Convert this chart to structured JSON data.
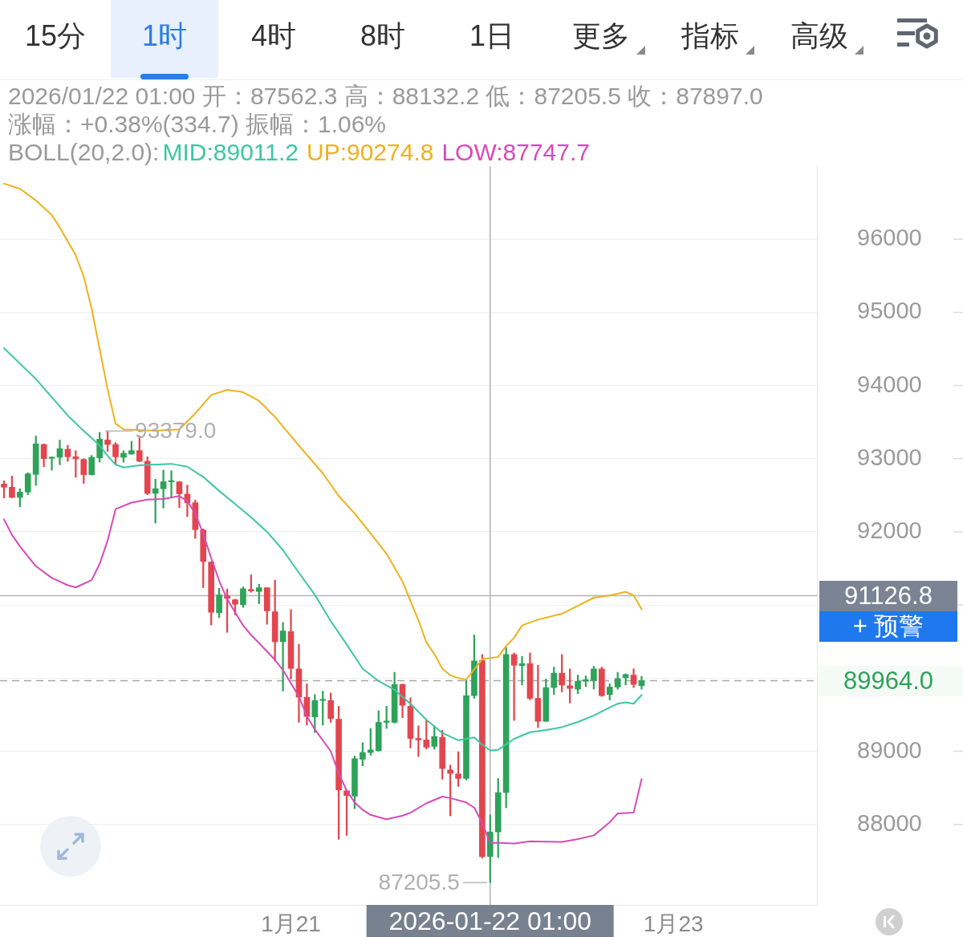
{
  "chart_data": {
    "type": "candlestick",
    "title": "2026/01/22 01:00 开：87562.3 高：88132.2 低：87205.5 收：87897.0",
    "subtitle": "涨幅：+0.38%(334.7) 振幅：1.06%",
    "legend_title": "BOLL(20,2.0):",
    "legend": "top left",
    "marker": "none",
    "grid": "y",
    "x": [
      "2026-01-19T12:00",
      "2026-01-19T13:00",
      "2026-01-19T14:00",
      "2026-01-19T15:00",
      "2026-01-19T16:00",
      "2026-01-19T17:00",
      "2026-01-19T18:00",
      "2026-01-19T19:00",
      "2026-01-19T20:00",
      "2026-01-19T21:00",
      "2026-01-19T22:00",
      "2026-01-19T23:00",
      "2026-01-20T00:00",
      "2026-01-20T01:00",
      "2026-01-20T02:00",
      "2026-01-20T03:00",
      "2026-01-20T04:00",
      "2026-01-20T05:00",
      "2026-01-20T06:00",
      "2026-01-20T07:00",
      "2026-01-20T08:00",
      "2026-01-20T09:00",
      "2026-01-20T10:00",
      "2026-01-20T11:00",
      "2026-01-20T12:00",
      "2026-01-20T13:00",
      "2026-01-20T14:00",
      "2026-01-20T15:00",
      "2026-01-20T16:00",
      "2026-01-20T17:00",
      "2026-01-20T18:00",
      "2026-01-20T19:00",
      "2026-01-20T20:00",
      "2026-01-20T21:00",
      "2026-01-20T22:00",
      "2026-01-20T23:00",
      "2026-01-21T00:00",
      "2026-01-21T01:00",
      "2026-01-21T02:00",
      "2026-01-21T03:00",
      "2026-01-21T04:00",
      "2026-01-21T05:00",
      "2026-01-21T06:00",
      "2026-01-21T07:00",
      "2026-01-21T08:00",
      "2026-01-21T09:00",
      "2026-01-21T10:00",
      "2026-01-21T11:00",
      "2026-01-21T12:00",
      "2026-01-21T13:00",
      "2026-01-21T14:00",
      "2026-01-21T15:00",
      "2026-01-21T16:00",
      "2026-01-21T17:00",
      "2026-01-21T18:00",
      "2026-01-21T19:00",
      "2026-01-21T20:00",
      "2026-01-21T21:00",
      "2026-01-21T22:00",
      "2026-01-21T23:00",
      "2026-01-22T00:00",
      "2026-01-22T01:00",
      "2026-01-22T02:00",
      "2026-01-22T03:00",
      "2026-01-22T04:00",
      "2026-01-22T05:00",
      "2026-01-22T06:00",
      "2026-01-22T07:00",
      "2026-01-22T08:00",
      "2026-01-22T09:00",
      "2026-01-22T10:00",
      "2026-01-22T11:00",
      "2026-01-22T12:00",
      "2026-01-22T13:00",
      "2026-01-22T14:00",
      "2026-01-22T15:00",
      "2026-01-22T16:00",
      "2026-01-22T17:00",
      "2026-01-22T18:00",
      "2026-01-22T19:00",
      "2026-01-22T20:00"
    ],
    "ohlc": [
      [
        92654,
        92698,
        92464,
        92610
      ],
      [
        92610,
        92763,
        92464,
        92471
      ],
      [
        92471,
        92588,
        92343,
        92544
      ],
      [
        92544,
        92807,
        92508,
        92793
      ],
      [
        92785,
        93311,
        92635,
        93202
      ],
      [
        93194,
        93202,
        92891,
        93001
      ],
      [
        93005,
        93026,
        92844,
        93020
      ],
      [
        93019,
        93256,
        92917,
        93136
      ],
      [
        93129,
        93183,
        92964,
        93026
      ],
      [
        93026,
        93110,
        92745,
        92997
      ],
      [
        92990,
        93001,
        92661,
        92782
      ],
      [
        92782,
        93045,
        92775,
        93019
      ],
      [
        93012,
        93360,
        92953,
        93267
      ],
      [
        93256,
        93379.0,
        93099,
        93194
      ],
      [
        93194,
        93220,
        92917,
        93026
      ],
      [
        93019,
        93110,
        92953,
        93074
      ],
      [
        93063,
        93238,
        93060,
        93110
      ],
      [
        93110,
        93311,
        92960,
        92964
      ],
      [
        92964,
        93026,
        92508,
        92526
      ],
      [
        92526,
        92719,
        92120,
        92590
      ],
      [
        92588,
        92844,
        92325,
        92685
      ],
      [
        92683,
        92836,
        92475,
        92698
      ],
      [
        92683,
        92690,
        92330,
        92520
      ],
      [
        92515,
        92640,
        92208,
        92398
      ],
      [
        92398,
        92435,
        91910,
        92030
      ],
      [
        92025,
        92040,
        91236,
        91594
      ],
      [
        91587,
        91594,
        90725,
        90900
      ],
      [
        90893,
        91229,
        90827,
        91138
      ],
      [
        91127,
        91218,
        90626,
        91090
      ],
      [
        91072,
        91080,
        90864,
        91010
      ],
      [
        91003,
        91247,
        90966,
        91222
      ],
      [
        91211,
        91412,
        91174,
        91192
      ],
      [
        91185,
        91284,
        91017,
        91236
      ],
      [
        91236,
        91240,
        90736,
        90919
      ],
      [
        90908,
        91339,
        90235,
        90498
      ],
      [
        90498,
        90761,
        89823,
        90645
      ],
      [
        90637,
        90937,
        89987,
        90133
      ],
      [
        90126,
        90462,
        89396,
        89739
      ],
      [
        89739,
        89922,
        89359,
        89476
      ],
      [
        89469,
        89776,
        89257,
        89695
      ],
      [
        89695,
        89823,
        89359,
        89710
      ],
      [
        89695,
        89797,
        89396,
        89447
      ],
      [
        89439,
        89615,
        87796,
        88471
      ],
      [
        88460,
        88471,
        87850,
        88395
      ],
      [
        88387,
        88935,
        88216,
        88899
      ],
      [
        88891,
        89118,
        88800,
        88983
      ],
      [
        88983,
        89312,
        88946,
        89019
      ],
      [
        89008,
        89556,
        89000,
        89396
      ],
      [
        89396,
        89615,
        89312,
        89414
      ],
      [
        89396,
        90079,
        89385,
        89914
      ],
      [
        89914,
        89920,
        89458,
        89629
      ],
      [
        89615,
        89732,
        89045,
        89176
      ],
      [
        89176,
        89348,
        88928,
        89155
      ],
      [
        89155,
        89421,
        89030,
        89056
      ],
      [
        89067,
        89348,
        89030,
        89202
      ],
      [
        89191,
        89286,
        88618,
        88764
      ],
      [
        88745,
        88811,
        88117,
        88698
      ],
      [
        88691,
        88994,
        88519,
        88629
      ],
      [
        88629,
        89969,
        88607,
        89761
      ],
      [
        89761,
        90590,
        89724,
        90236
      ],
      [
        90243,
        90323,
        87540,
        87562.3
      ],
      [
        87562.3,
        88132.2,
        87205.5,
        87897.0
      ],
      [
        87897,
        88629,
        87547,
        88435
      ],
      [
        88435,
        90418,
        88227,
        90323
      ],
      [
        90323,
        90345,
        89421,
        90177
      ],
      [
        90170,
        90298,
        89907,
        90199
      ],
      [
        90199,
        90345,
        89702,
        89724
      ],
      [
        89724,
        90177,
        89323,
        89410
      ],
      [
        89410,
        89987,
        89405,
        89871
      ],
      [
        89871,
        90152,
        89776,
        90068
      ],
      [
        90068,
        90323,
        89812,
        89907
      ],
      [
        89896,
        90126,
        89659,
        89860
      ],
      [
        89849,
        90042,
        89787,
        89958
      ],
      [
        89958,
        90031,
        89885,
        89980
      ],
      [
        89969,
        90163,
        89849,
        90126
      ],
      [
        90126,
        90152,
        89750,
        89761
      ],
      [
        89776,
        89922,
        89702,
        89878
      ],
      [
        89878,
        90079,
        89849,
        89995
      ],
      [
        90006,
        90060,
        89907,
        90049
      ],
      [
        90042,
        90126,
        89871,
        89915
      ],
      [
        89896,
        90024,
        89849,
        89964.0
      ]
    ],
    "colors": [
      "#e2464f",
      "#e2464f",
      "#2ea35a",
      "#2ea35a",
      "#2ea35a",
      "#e2464f",
      "#2ea35a",
      "#2ea35a",
      "#e2464f",
      "#e2464f",
      "#e2464f",
      "#2ea35a",
      "#2ea35a",
      "#e2464f",
      "#e2464f",
      "#2ea35a",
      "#2ea35a",
      "#e2464f",
      "#e2464f",
      "#2ea35a",
      "#2ea35a",
      "#2ea35a",
      "#e2464f",
      "#e2464f",
      "#e2464f",
      "#e2464f",
      "#e2464f",
      "#2ea35a",
      "#e2464f",
      "#e2464f",
      "#2ea35a",
      "#e2464f",
      "#2ea35a",
      "#e2464f",
      "#e2464f",
      "#2ea35a",
      "#e2464f",
      "#e2464f",
      "#e2464f",
      "#2ea35a",
      "#2ea35a",
      "#e2464f",
      "#e2464f",
      "#e2464f",
      "#2ea35a",
      "#2ea35a",
      "#2ea35a",
      "#2ea35a",
      "#2ea35a",
      "#2ea35a",
      "#e2464f",
      "#e2464f",
      "#e2464f",
      "#e2464f",
      "#2ea35a",
      "#e2464f",
      "#e2464f",
      "#e2464f",
      "#2ea35a",
      "#2ea35a",
      "#e2464f",
      "#2ea35a",
      "#2ea35a",
      "#2ea35a",
      "#e2464f",
      "#2ea35a",
      "#e2464f",
      "#e2464f",
      "#2ea35a",
      "#2ea35a",
      "#e2464f",
      "#e2464f",
      "#2ea35a",
      "#2ea35a",
      "#2ea35a",
      "#e2464f",
      "#2ea35a",
      "#2ea35a",
      "#2ea35a",
      "#e2464f",
      "#2ea35a"
    ],
    "series": [
      {
        "name": "MID:89011.2",
        "type": "line",
        "color": "#3ec6a4",
        "x": [
          "2026-01-19T12:00",
          "2026-01-19T16:00",
          "2026-01-19T20:00",
          "2026-01-19T22:00",
          "2026-01-20T00:00",
          "2026-01-20T01:00",
          "2026-01-20T02:00",
          "2026-01-20T03:00",
          "2026-01-20T05:00",
          "2026-01-20T09:00",
          "2026-01-20T11:00",
          "2026-01-20T13:00",
          "2026-01-20T15:00",
          "2026-01-20T17:00",
          "2026-01-20T19:00",
          "2026-01-20T21:00",
          "2026-01-20T23:00",
          "2026-01-21T01:00",
          "2026-01-21T03:00",
          "2026-01-21T05:00",
          "2026-01-21T07:00",
          "2026-01-21T09:00",
          "2026-01-21T11:00",
          "2026-01-21T13:00",
          "2026-01-21T15:00",
          "2026-01-21T17:00",
          "2026-01-21T19:00",
          "2026-01-21T21:00",
          "2026-01-21T23:00",
          "2026-01-22T00:00",
          "2026-01-22T01:00",
          "2026-01-22T02:00",
          "2026-01-22T04:00",
          "2026-01-22T06:00",
          "2026-01-22T08:00",
          "2026-01-22T10:00",
          "2026-01-22T12:00",
          "2026-01-22T14:00",
          "2026-01-22T16:00",
          "2026-01-22T17:00",
          "2026-01-22T18:00",
          "2026-01-22T19:00",
          "2026-01-22T20:00"
        ],
        "values": [
          94510,
          94090,
          93590,
          93380,
          93180,
          93040,
          92920,
          92880,
          92910,
          92930,
          92890,
          92750,
          92560,
          92380,
          92200,
          92000,
          91750,
          91440,
          91140,
          90780,
          90460,
          90130,
          89960,
          89840,
          89650,
          89430,
          89250,
          89150,
          89190,
          89090,
          89011.2,
          89020,
          89170,
          89260,
          89290,
          89330,
          89400,
          89490,
          89600,
          89650,
          89670,
          89650,
          89770
        ]
      },
      {
        "name": "UP:90274.8",
        "type": "line",
        "color": "#eeb21c",
        "x": [
          "2026-01-19T12:00",
          "2026-01-19T14:00",
          "2026-01-19T16:00",
          "2026-01-19T18:00",
          "2026-01-19T19:00",
          "2026-01-19T21:00",
          "2026-01-19T22:00",
          "2026-01-19T23:00",
          "2026-01-20T00:00",
          "2026-01-20T01:00",
          "2026-01-20T02:00",
          "2026-01-20T03:00",
          "2026-01-20T07:00",
          "2026-01-20T10:00",
          "2026-01-20T12:00",
          "2026-01-20T14:00",
          "2026-01-20T16:00",
          "2026-01-20T18:00",
          "2026-01-20T20:00",
          "2026-01-20T22:00",
          "2026-01-21T01:00",
          "2026-01-21T04:00",
          "2026-01-21T06:00",
          "2026-01-21T08:00",
          "2026-01-21T10:00",
          "2026-01-21T12:00",
          "2026-01-21T14:00",
          "2026-01-21T16:00",
          "2026-01-21T17:00",
          "2026-01-21T18:00",
          "2026-01-21T19:00",
          "2026-01-21T20:00",
          "2026-01-21T21:00",
          "2026-01-21T22:00",
          "2026-01-21T23:00",
          "2026-01-22T00:00",
          "2026-01-22T01:00",
          "2026-01-22T02:00",
          "2026-01-22T03:00",
          "2026-01-22T04:00",
          "2026-01-22T05:00",
          "2026-01-22T07:00",
          "2026-01-22T10:00",
          "2026-01-22T12:00",
          "2026-01-22T14:00",
          "2026-01-22T16:00",
          "2026-01-22T18:00",
          "2026-01-22T19:00",
          "2026-01-22T20:00"
        ],
        "values": [
          96760,
          96690,
          96530,
          96330,
          96160,
          95780,
          95490,
          95050,
          94500,
          93950,
          93480,
          93400,
          93380,
          93400,
          93620,
          93870,
          93940,
          93910,
          93790,
          93570,
          93180,
          92800,
          92490,
          92250,
          91980,
          91700,
          91320,
          90790,
          90490,
          90330,
          90130,
          90040,
          90000,
          89980,
          90120,
          90260,
          90274.8,
          90290,
          90440,
          90550,
          90720,
          90800,
          90880,
          90990,
          91100,
          91130,
          91180,
          91130,
          90940
        ]
      },
      {
        "name": "LOW:87747.7",
        "type": "line",
        "color": "#d64bb8",
        "x": [
          "2026-01-19T12:00",
          "2026-01-19T13:00",
          "2026-01-19T14:00",
          "2026-01-19T16:00",
          "2026-01-19T18:00",
          "2026-01-19T20:00",
          "2026-01-19T21:00",
          "2026-01-19T23:00",
          "2026-01-20T00:00",
          "2026-01-20T01:00",
          "2026-01-20T02:00",
          "2026-01-20T04:00",
          "2026-01-20T06:00",
          "2026-01-20T08:00",
          "2026-01-20T10:00",
          "2026-01-20T11:00",
          "2026-01-20T12:00",
          "2026-01-20T13:00",
          "2026-01-20T14:00",
          "2026-01-20T15:00",
          "2026-01-20T16:00",
          "2026-01-20T18:00",
          "2026-01-20T19:00",
          "2026-01-20T20:00",
          "2026-01-20T22:00",
          "2026-01-20T23:00",
          "2026-01-21T00:00",
          "2026-01-21T01:00",
          "2026-01-21T02:00",
          "2026-01-21T03:00",
          "2026-01-21T05:00",
          "2026-01-21T06:00",
          "2026-01-21T07:00",
          "2026-01-21T08:00",
          "2026-01-21T09:00",
          "2026-01-21T10:00",
          "2026-01-21T12:00",
          "2026-01-21T14:00",
          "2026-01-21T15:00",
          "2026-01-21T17:00",
          "2026-01-21T19:00",
          "2026-01-21T20:00",
          "2026-01-21T22:00",
          "2026-01-21T23:00",
          "2026-01-22T00:00",
          "2026-01-22T01:00",
          "2026-01-22T02:00",
          "2026-01-22T04:00",
          "2026-01-22T06:00",
          "2026-01-22T10:00",
          "2026-01-22T12:00",
          "2026-01-22T14:00",
          "2026-01-22T15:00",
          "2026-01-22T16:00",
          "2026-01-22T17:00",
          "2026-01-22T19:00",
          "2026-01-22T20:00"
        ],
        "values": [
          92170,
          91960,
          91800,
          91530,
          91370,
          91270,
          91240,
          91340,
          91560,
          91880,
          92310,
          92400,
          92440,
          92450,
          92490,
          92420,
          92250,
          91970,
          91640,
          91330,
          91080,
          90720,
          90590,
          90480,
          90250,
          90110,
          89930,
          89750,
          89480,
          89300,
          89000,
          88700,
          88460,
          88300,
          88200,
          88130,
          88070,
          88120,
          88160,
          88290,
          88380,
          88360,
          88300,
          88230,
          88020,
          87747.7,
          87750,
          87740,
          87770,
          87760,
          87800,
          87850,
          87940,
          88030,
          88150,
          88160,
          88620
        ]
      }
    ],
    "xlim": [
      "2026-01-19T11:30",
      "2026-01-23T18:00"
    ],
    "xticks": [
      {
        "value": "2026-01-21",
        "label": "1月21"
      },
      {
        "value": "2026-01-23",
        "label": "1月23"
      }
    ],
    "ylim": [
      86900,
      97000
    ],
    "yticks": [
      88000,
      89000,
      {
        "value": 90000,
        "label": null
      },
      {
        "value": 91000,
        "label": null
      },
      92000,
      93000,
      94000,
      95000,
      96000
    ],
    "ref_lines": [
      {
        "axis": "x",
        "value": "2026-01-22T01:00",
        "color": "#b4b4b4"
      },
      {
        "axis": "y",
        "value": 91126.8,
        "color": "#b4b4b4",
        "line_style": "solid"
      },
      {
        "axis": "y",
        "value": 89964.0,
        "color": "#a6a6a6",
        "line_style": "dashed"
      }
    ],
    "annotations": [
      "15分",
      "1时",
      "4时",
      "8时",
      "1日",
      "更多",
      "指标",
      "高级",
      "+ 预警",
      "2026-01-22 01:00",
      "91126.8",
      "89964.0",
      {
        "text": "93379.0",
        "x": "2026-01-20T01:00",
        "y": 93379.0
      },
      {
        "text": "87205.5",
        "x": "2026-01-22T01:00",
        "y": 87205.5
      }
    ]
  }
}
